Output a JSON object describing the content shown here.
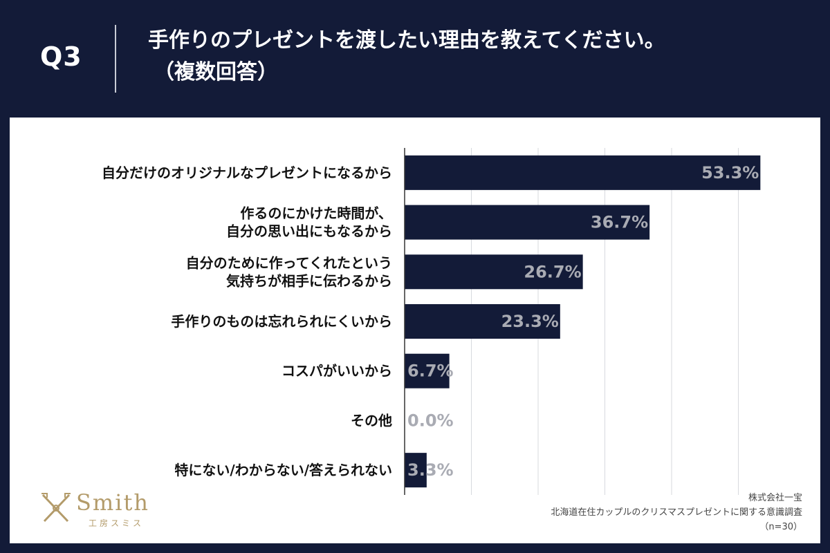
{
  "header": {
    "question_number": "Q3",
    "title_line1": "手作りのプレゼントを渡したい理由を教えてください。",
    "title_line2": "（複数回答）"
  },
  "colors": {
    "background": "#131b38",
    "bar": "#131b38",
    "value_label": "#a9abb3",
    "logo": "#b39b6a"
  },
  "chart_data": {
    "type": "bar",
    "orientation": "horizontal",
    "categories": [
      [
        "自分だけのオリジナルなプレゼントになるから"
      ],
      [
        "作るのにかけた時間が、",
        "自分の思い出にもなるから"
      ],
      [
        "自分のために作ってくれたという",
        "気持ちが相手に伝わるから"
      ],
      [
        "手作りのものは忘れられにくいから"
      ],
      [
        "コスパがいいから"
      ],
      [
        "その他"
      ],
      [
        "特にない/わからない/答えられない"
      ]
    ],
    "values": [
      53.3,
      36.7,
      26.7,
      23.3,
      6.7,
      0.0,
      3.3
    ],
    "value_labels": [
      "53.3%",
      "36.7%",
      "26.7%",
      "23.3%",
      "6.7%",
      "0.0%",
      "3.3%"
    ],
    "xlim": [
      0,
      60
    ],
    "grid": true,
    "unit": "%"
  },
  "logo": {
    "word": "Smith",
    "sub": "工房スミス",
    "icon": "crossed-tools-icon"
  },
  "source": {
    "company": "株式会社一宝",
    "survey": "北海道在住カップルのクリスマスプレゼントに関する意識調査",
    "sample": "（n=30）"
  }
}
